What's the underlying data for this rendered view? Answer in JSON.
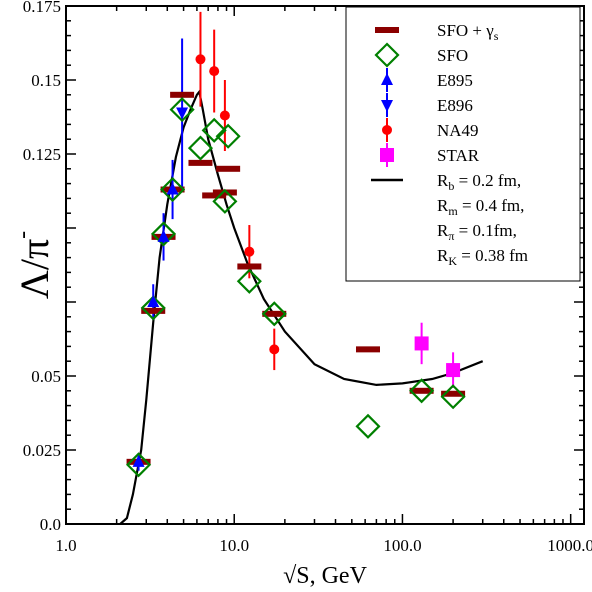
{
  "chart_data": {
    "type": "scatter",
    "x_scale": "log",
    "xlim": [
      1.0,
      1200.0
    ],
    "ylim": [
      0.0,
      0.175
    ],
    "xlabel": "√S, GeV",
    "ylabel": "Λ/π",
    "ylabel_sup": "-",
    "x_ticks": [
      {
        "value": 1.0,
        "label": "1.0"
      },
      {
        "value": 10.0,
        "label": "10.0"
      },
      {
        "value": 100.0,
        "label": "100.0"
      },
      {
        "value": 1000.0,
        "label": "1000.0"
      }
    ],
    "y_ticks": [
      {
        "value": 0.0,
        "label": "0.0"
      },
      {
        "value": 0.025,
        "label": "0.025"
      },
      {
        "value": 0.05,
        "label": "0.05"
      },
      {
        "value": 0.075,
        "label": ""
      },
      {
        "value": 0.1,
        "label": ""
      },
      {
        "value": 0.125,
        "label": "0.125"
      },
      {
        "value": 0.15,
        "label": "0.15"
      },
      {
        "value": 0.175,
        "label": "0.175"
      }
    ],
    "series": [
      {
        "name": "SFO + γ",
        "name_sub": "s",
        "marker": "dash",
        "color": "#8b0000",
        "points": [
          {
            "x": 2.7,
            "y": 0.021
          },
          {
            "x": 3.3,
            "y": 0.072
          },
          {
            "x": 3.8,
            "y": 0.097
          },
          {
            "x": 4.3,
            "y": 0.113
          },
          {
            "x": 4.9,
            "y": 0.145
          },
          {
            "x": 6.3,
            "y": 0.122
          },
          {
            "x": 7.6,
            "y": 0.111
          },
          {
            "x": 8.8,
            "y": 0.112
          },
          {
            "x": 9.2,
            "y": 0.12
          },
          {
            "x": 12.3,
            "y": 0.087
          },
          {
            "x": 17.3,
            "y": 0.071
          },
          {
            "x": 62.4,
            "y": 0.059
          },
          {
            "x": 130.0,
            "y": 0.045
          },
          {
            "x": 200.0,
            "y": 0.044
          }
        ]
      },
      {
        "name": "SFO",
        "marker": "diamond",
        "color": "#008000",
        "points": [
          {
            "x": 2.7,
            "y": 0.02
          },
          {
            "x": 3.3,
            "y": 0.073
          },
          {
            "x": 3.8,
            "y": 0.098
          },
          {
            "x": 4.3,
            "y": 0.113
          },
          {
            "x": 4.9,
            "y": 0.14
          },
          {
            "x": 6.3,
            "y": 0.127
          },
          {
            "x": 7.6,
            "y": 0.133
          },
          {
            "x": 8.8,
            "y": 0.109
          },
          {
            "x": 9.2,
            "y": 0.131
          },
          {
            "x": 12.3,
            "y": 0.082
          },
          {
            "x": 17.3,
            "y": 0.071
          },
          {
            "x": 62.4,
            "y": 0.033
          },
          {
            "x": 130.0,
            "y": 0.045
          },
          {
            "x": 200.0,
            "y": 0.043
          }
        ]
      },
      {
        "name": "E895",
        "marker": "triangle-up",
        "color": "#0000ff",
        "points": [
          {
            "x": 2.7,
            "y": 0.021,
            "err": 0.003
          },
          {
            "x": 3.3,
            "y": 0.075,
            "err": 0.006
          },
          {
            "x": 3.8,
            "y": 0.097,
            "err": 0.008
          },
          {
            "x": 4.3,
            "y": 0.113,
            "err": 0.01
          }
        ]
      },
      {
        "name": "E896",
        "marker": "triangle-down",
        "color": "#0000ff",
        "points": [
          {
            "x": 4.9,
            "y": 0.139,
            "err": 0.025
          }
        ]
      },
      {
        "name": "NA49",
        "marker": "circle",
        "color": "#ff0000",
        "points": [
          {
            "x": 6.3,
            "y": 0.157,
            "err": 0.016
          },
          {
            "x": 7.6,
            "y": 0.153,
            "err": 0.014
          },
          {
            "x": 8.8,
            "y": 0.138,
            "err": 0.012
          },
          {
            "x": 12.3,
            "y": 0.092,
            "err": 0.009
          },
          {
            "x": 17.3,
            "y": 0.059,
            "err": 0.007
          }
        ]
      },
      {
        "name": "STAR",
        "marker": "square",
        "color": "#ff00ff",
        "points": [
          {
            "x": 130.0,
            "y": 0.061,
            "err": 0.007
          },
          {
            "x": 200.0,
            "y": 0.052,
            "err": 0.006
          }
        ]
      },
      {
        "name": "curve",
        "marker": "line",
        "color": "#000000",
        "points": [
          {
            "x": 2.1,
            "y": 0.0
          },
          {
            "x": 2.3,
            "y": 0.002
          },
          {
            "x": 2.5,
            "y": 0.01
          },
          {
            "x": 2.8,
            "y": 0.025
          },
          {
            "x": 3.0,
            "y": 0.042
          },
          {
            "x": 3.3,
            "y": 0.068
          },
          {
            "x": 3.6,
            "y": 0.09
          },
          {
            "x": 4.0,
            "y": 0.108
          },
          {
            "x": 4.5,
            "y": 0.124
          },
          {
            "x": 5.0,
            "y": 0.134
          },
          {
            "x": 5.5,
            "y": 0.14
          },
          {
            "x": 6.0,
            "y": 0.145
          },
          {
            "x": 6.2,
            "y": 0.146
          },
          {
            "x": 6.5,
            "y": 0.14
          },
          {
            "x": 7.0,
            "y": 0.13
          },
          {
            "x": 8.0,
            "y": 0.118
          },
          {
            "x": 9.0,
            "y": 0.108
          },
          {
            "x": 10.0,
            "y": 0.1
          },
          {
            "x": 12.0,
            "y": 0.088
          },
          {
            "x": 15.0,
            "y": 0.076
          },
          {
            "x": 20.0,
            "y": 0.065
          },
          {
            "x": 30.0,
            "y": 0.054
          },
          {
            "x": 45.0,
            "y": 0.049
          },
          {
            "x": 70.0,
            "y": 0.047
          },
          {
            "x": 100.0,
            "y": 0.0475
          },
          {
            "x": 150.0,
            "y": 0.049
          },
          {
            "x": 200.0,
            "y": 0.051
          },
          {
            "x": 300.0,
            "y": 0.055
          }
        ]
      }
    ],
    "legend": {
      "position": "top-right",
      "items": [
        {
          "series": "SFO + γ",
          "label": "SFO + γ",
          "sub": "s"
        },
        {
          "series": "SFO",
          "label": "SFO"
        },
        {
          "series": "E895",
          "label": "E895"
        },
        {
          "series": "E896",
          "label": "E896"
        },
        {
          "series": "NA49",
          "label": "NA49"
        },
        {
          "series": "STAR",
          "label": "STAR"
        },
        {
          "series": "curve",
          "lines": [
            {
              "prefix": "R",
              "sub": "b",
              "suffix": " = 0.2 fm,"
            },
            {
              "prefix": " R",
              "sub": "m",
              "suffix": " = 0.4 fm,"
            },
            {
              "prefix": " R",
              "sub": "π",
              "suffix": " = 0.1fm,"
            },
            {
              "prefix": "R",
              "sub": "K",
              "suffix": " = 0.38 fm"
            }
          ]
        }
      ]
    }
  }
}
